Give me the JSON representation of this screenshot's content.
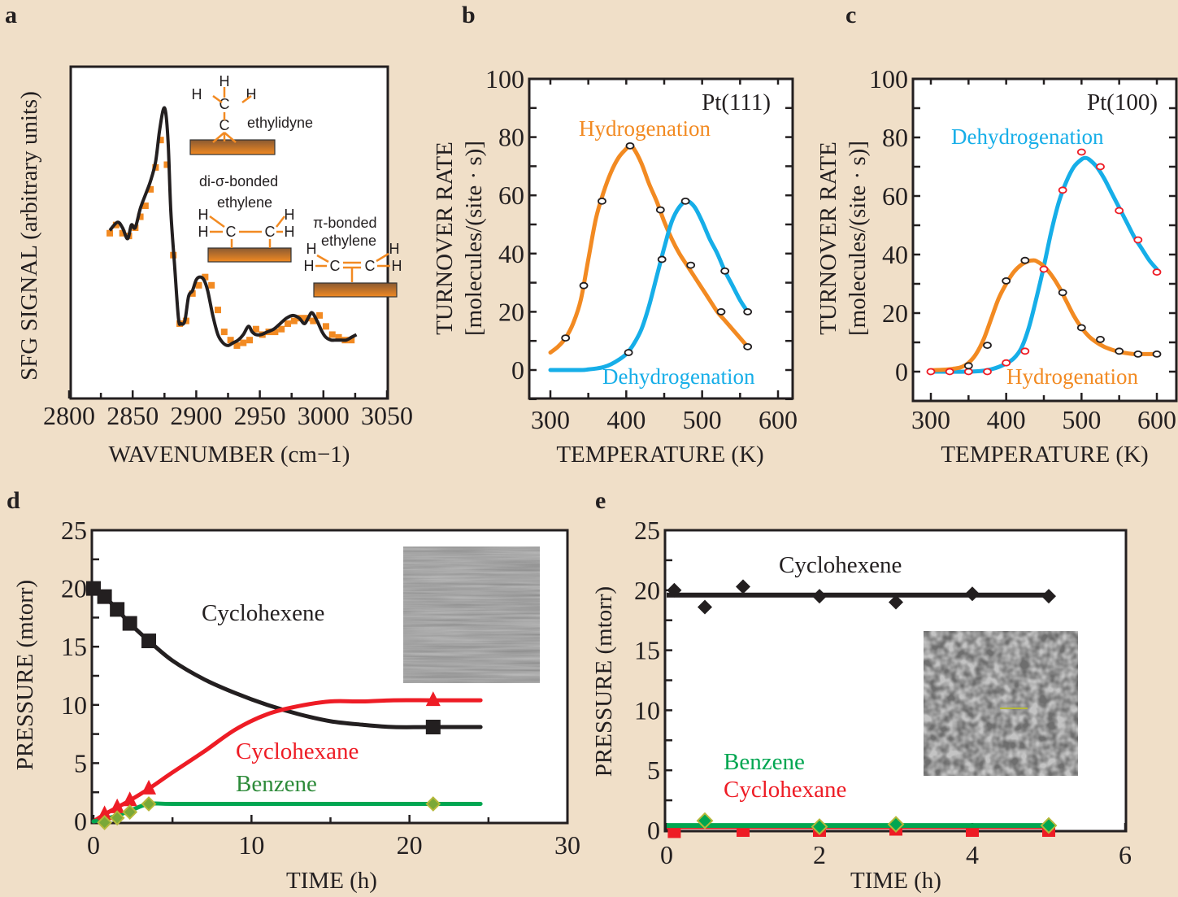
{
  "colors": {
    "background": "#f0dfc8",
    "orange": "#f28a22",
    "blue": "#16aee8",
    "black": "#231f20",
    "red": "#ee1c25",
    "green": "#00a651",
    "olive": "#b5b83a",
    "marker_red": "#ee1c25"
  },
  "chart_data": [
    {
      "panel": "a",
      "panel_label": "a",
      "type": "line",
      "title": "",
      "xlabel": "WAVENUMBER (cm−1)",
      "ylabel": "SFG SIGNAL (arbitrary units)",
      "xlim": [
        2800,
        3050
      ],
      "ylim": [
        0,
        100
      ],
      "xticks": [
        2800,
        2850,
        2900,
        2950,
        3000,
        3050
      ],
      "yticks": [],
      "grid": false,
      "series": [
        {
          "name": "fit",
          "style": "line",
          "color": "#231f20",
          "x": [
            2832,
            2838,
            2842,
            2846,
            2849,
            2852,
            2856,
            2860,
            2864,
            2868,
            2871,
            2874,
            2876,
            2878,
            2880,
            2883,
            2886,
            2888,
            2891,
            2894,
            2897,
            2900,
            2903,
            2906,
            2909,
            2913,
            2917,
            2921,
            2925,
            2929,
            2933,
            2937,
            2941,
            2944,
            2947,
            2951,
            2956,
            2961,
            2966,
            2971,
            2976,
            2981,
            2985,
            2988,
            2991,
            2995,
            2999,
            3002,
            3006,
            3010,
            3014,
            3018,
            3022,
            3026
          ],
          "y": [
            53,
            56,
            54,
            50,
            55,
            54,
            61,
            66,
            71,
            78,
            89,
            97,
            96,
            84,
            60,
            40,
            21,
            19,
            20,
            29,
            31,
            35,
            36,
            35,
            31,
            22,
            15,
            12,
            11,
            12,
            13,
            15,
            18,
            16,
            15,
            15,
            16,
            17,
            19,
            21,
            22,
            21,
            19,
            21,
            23,
            20,
            16,
            14,
            13,
            13,
            13,
            13,
            14,
            15
          ],
          "smooth": true
        },
        {
          "name": "data",
          "style": "square-markers",
          "color": "#f28a22",
          "x": [
            2832,
            2837,
            2842,
            2847,
            2852,
            2856,
            2860,
            2864,
            2868,
            2872,
            2877,
            2882,
            2887,
            2892,
            2897,
            2902,
            2907,
            2912,
            2917,
            2922,
            2927,
            2932,
            2937,
            2942,
            2947,
            2952,
            2957,
            2962,
            2967,
            2972,
            2977,
            2982,
            2987,
            2992,
            2997,
            3002,
            3007,
            3012,
            3017,
            3022
          ],
          "y": [
            52,
            55,
            52,
            51,
            54,
            58,
            62,
            68,
            76,
            86,
            77,
            44,
            19,
            20,
            30,
            33,
            36,
            33,
            24,
            16,
            13,
            11,
            12,
            13,
            17,
            15,
            16,
            16,
            17,
            19,
            20,
            21,
            21,
            20,
            22,
            18,
            15,
            14,
            13,
            13
          ]
        }
      ],
      "annotations": [
        {
          "text": "ethylidyne",
          "kind": "molecule",
          "molecule": "ethylidyne"
        },
        {
          "text": "di-σ-bonded",
          "kind": "label"
        },
        {
          "text": "ethylene",
          "kind": "label"
        },
        {
          "text": "π-bonded",
          "kind": "label"
        },
        {
          "text": "ethylene",
          "kind": "label"
        }
      ],
      "molecules": [
        {
          "name": "ethylidyne",
          "atoms": [
            "H",
            "H",
            "H",
            "C",
            "C"
          ]
        },
        {
          "name": "di-sigma-bonded-ethylene",
          "atoms": [
            "H",
            "H",
            "C",
            "C",
            "H",
            "H"
          ]
        },
        {
          "name": "pi-bonded-ethylene",
          "atoms": [
            "H",
            "H",
            "C",
            "C",
            "H",
            "H"
          ]
        }
      ]
    },
    {
      "panel": "b",
      "panel_label": "b",
      "type": "line",
      "title": "Pt(111)",
      "xlabel": "TEMPERATURE  (K)",
      "ylabel": "TURNOVER RATE",
      "ylabel2": "[molecules/(site · s)]",
      "xlim": [
        300,
        600
      ],
      "ylim": [
        -10,
        100
      ],
      "xticks": [
        300,
        400,
        500,
        600
      ],
      "yticks": [
        0,
        20,
        40,
        60,
        80,
        100
      ],
      "grid": false,
      "series": [
        {
          "name": "Hydrogenation",
          "color": "#f28a22",
          "curve_x": [
            300,
            310,
            320,
            330,
            340,
            350,
            360,
            370,
            380,
            390,
            400,
            405,
            410,
            420,
            430,
            440,
            450,
            460,
            470,
            480,
            490,
            500,
            510,
            520,
            530,
            540,
            550,
            560
          ],
          "curve_y": [
            6,
            8,
            11,
            16,
            24,
            38,
            52,
            61,
            68,
            73,
            76,
            77,
            76,
            71,
            64,
            58,
            51,
            45,
            40,
            36,
            32,
            28,
            24,
            20,
            17,
            14,
            11,
            8
          ],
          "points_x": [
            320,
            344,
            368,
            405,
            445,
            485,
            525,
            560
          ],
          "points_y": [
            11,
            29,
            58,
            77,
            55,
            36,
            20,
            8
          ]
        },
        {
          "name": "Dehydrogenation",
          "color": "#16aee8",
          "curve_x": [
            300,
            340,
            350,
            360,
            370,
            380,
            390,
            400,
            410,
            420,
            430,
            440,
            450,
            460,
            470,
            480,
            490,
            500,
            510,
            520,
            530,
            540,
            550,
            560
          ],
          "curve_y": [
            0,
            0,
            0.2,
            0.5,
            1,
            2,
            3.5,
            5.5,
            9,
            14,
            22,
            32,
            42,
            51,
            56,
            58,
            56,
            51,
            45,
            40,
            34,
            29,
            24,
            20
          ],
          "points_x": [
            403,
            447,
            478,
            530,
            560
          ],
          "points_y": [
            6,
            38,
            58,
            34,
            20
          ]
        }
      ],
      "labels": [
        {
          "text": "Pt(111)",
          "color": "#231f20"
        },
        {
          "text": "Hydrogenation",
          "color": "#f28a22"
        },
        {
          "text": "Dehydrogenation",
          "color": "#16aee8"
        }
      ]
    },
    {
      "panel": "c",
      "panel_label": "c",
      "type": "line",
      "title": "Pt(100)",
      "xlabel": "TEMPERATURE  (K)",
      "ylabel": "TURNOVER RATE",
      "ylabel2": "[molecules/(site · s)]",
      "xlim": [
        300,
        600
      ],
      "ylim": [
        -10,
        100
      ],
      "xticks": [
        300,
        400,
        500,
        600
      ],
      "yticks": [
        0,
        20,
        40,
        60,
        80,
        100
      ],
      "grid": false,
      "series": [
        {
          "name": "Dehydrogenation",
          "color": "#16aee8",
          "curve_x": [
            300,
            350,
            370,
            380,
            390,
            400,
            410,
            420,
            430,
            440,
            450,
            460,
            470,
            480,
            490,
            500,
            505,
            510,
            520,
            530,
            540,
            550,
            560,
            570,
            580,
            590,
            600
          ],
          "curve_y": [
            0,
            0,
            0.3,
            0.8,
            1.6,
            2.8,
            4.5,
            8,
            15,
            25,
            36,
            48,
            58,
            65,
            70,
            72.5,
            73,
            72.5,
            70,
            66,
            61,
            56,
            51,
            46,
            42,
            38,
            35
          ],
          "points_x": [
            300,
            325,
            350,
            375,
            400,
            425,
            450,
            475,
            500,
            525,
            550,
            575,
            600
          ],
          "points_y": [
            0,
            0,
            0,
            0,
            3,
            7,
            35,
            62,
            75,
            70,
            55,
            45,
            34
          ],
          "point_color": "#ee1c25"
        },
        {
          "name": "Hydrogenation",
          "color": "#f28a22",
          "curve_x": [
            300,
            320,
            330,
            340,
            350,
            360,
            370,
            380,
            390,
            400,
            410,
            420,
            430,
            435,
            440,
            450,
            460,
            470,
            480,
            490,
            500,
            510,
            520,
            530,
            540,
            550,
            560,
            570,
            580,
            590,
            600
          ],
          "curve_y": [
            0.5,
            0.7,
            1,
            1.5,
            3,
            6,
            11,
            18,
            25,
            30,
            34,
            36.5,
            37.8,
            38,
            37.8,
            36,
            33,
            29,
            24,
            19,
            15,
            12,
            10,
            8.5,
            7.5,
            6.8,
            6.3,
            6,
            6,
            6,
            6
          ],
          "points_x": [
            350,
            375,
            400,
            425,
            475,
            500,
            525,
            550,
            575,
            600
          ],
          "points_y": [
            2,
            9,
            31,
            38,
            27,
            15,
            11,
            7,
            6,
            6
          ],
          "point_color": "#231f20"
        }
      ],
      "labels": [
        {
          "text": "Pt(100)",
          "color": "#231f20"
        },
        {
          "text": "Dehydrogenation",
          "color": "#16aee8"
        },
        {
          "text": "Hydrogenation",
          "color": "#f28a22"
        }
      ]
    },
    {
      "panel": "d",
      "panel_label": "d",
      "type": "line",
      "title": "",
      "xlabel": "TIME (h)",
      "ylabel": "PRESSURE (mtorr)",
      "xlim": [
        0,
        30
      ],
      "ylim": [
        0,
        25
      ],
      "xticks": [
        0,
        10,
        20,
        30
      ],
      "yticks": [
        0,
        5,
        10,
        15,
        20,
        25
      ],
      "grid": false,
      "series": [
        {
          "name": "Cyclohexene",
          "color": "#231f20",
          "marker": "square",
          "curve_x": [
            0,
            0.7,
            1.5,
            2.3,
            3.5,
            5,
            7,
            9,
            11,
            13,
            15,
            17,
            19,
            21.5,
            24.5
          ],
          "curve_y": [
            20,
            19.3,
            18.2,
            17,
            15.5,
            13.8,
            12.2,
            11,
            10,
            9.2,
            8.6,
            8.3,
            8.1,
            8.1,
            8.1
          ],
          "points_x": [
            0,
            0.7,
            1.5,
            2.3,
            3.5,
            21.5
          ],
          "points_y": [
            20,
            19.3,
            18.2,
            17,
            15.5,
            8.1
          ]
        },
        {
          "name": "Cyclohexane",
          "color": "#ee1c25",
          "marker": "triangle",
          "curve_x": [
            0,
            0.7,
            1.5,
            2.3,
            3.5,
            5,
            7,
            9,
            11,
            13,
            15,
            17,
            19,
            21.5,
            24.5
          ],
          "curve_y": [
            0,
            0.6,
            1.2,
            1.8,
            2.8,
            4.2,
            6,
            7.9,
            9.2,
            9.9,
            10.3,
            10.3,
            10.4,
            10.4,
            10.4
          ],
          "points_x": [
            0.7,
            1.5,
            2.3,
            3.5,
            21.5
          ],
          "points_y": [
            0.6,
            1.2,
            1.8,
            2.8,
            10.4
          ]
        },
        {
          "name": "Benzene",
          "color": "#00a651",
          "marker": "diamond",
          "curve_x": [
            0,
            0.7,
            1.5,
            2.3,
            3.5,
            5,
            10,
            15,
            20,
            21.5,
            24.5
          ],
          "curve_y": [
            0,
            0.2,
            0.5,
            0.9,
            1.5,
            1.5,
            1.5,
            1.5,
            1.5,
            1.5,
            1.5
          ],
          "points_x": [
            0.7,
            1.5,
            2.3,
            3.5,
            21.5
          ],
          "points_y": [
            -0.1,
            0.3,
            0.8,
            1.5,
            1.5
          ]
        }
      ],
      "labels": [
        {
          "text": "Cyclohexene",
          "color": "#231f20"
        },
        {
          "text": "Cyclohexane",
          "color": "#ee1c25"
        },
        {
          "text": "Benzene",
          "color": "#2e8b3a"
        }
      ],
      "inset": {
        "kind": "stm-image",
        "texture": "streaked-gray"
      }
    },
    {
      "panel": "e",
      "panel_label": "e",
      "type": "line",
      "title": "",
      "xlabel": "TIME (h)",
      "ylabel": "PRESSURE (mtorr)",
      "xlim": [
        0,
        6
      ],
      "ylim": [
        0,
        25
      ],
      "xticks": [
        0,
        2,
        4,
        6
      ],
      "yticks": [
        0,
        5,
        10,
        15,
        20,
        25
      ],
      "grid": false,
      "series": [
        {
          "name": "Cyclohexene",
          "color": "#231f20",
          "marker": "diamond",
          "curve_x": [
            0,
            5
          ],
          "curve_y": [
            19.6,
            19.6
          ],
          "points_x": [
            0.1,
            0.5,
            1,
            2,
            3,
            4,
            5
          ],
          "points_y": [
            20,
            18.6,
            20.3,
            19.5,
            19,
            19.7,
            19.5
          ]
        },
        {
          "name": "Cyclohexane",
          "color": "#ee1c25",
          "marker": "square",
          "curve_x": [
            0,
            5
          ],
          "curve_y": [
            0.3,
            0.3
          ],
          "points_x": [
            0.1,
            1,
            2,
            3,
            4,
            5
          ],
          "points_y": [
            -0.1,
            0,
            0,
            0.1,
            0,
            0
          ]
        },
        {
          "name": "Benzene",
          "color": "#00a651",
          "marker": "diamond",
          "curve_x": [
            0,
            5
          ],
          "curve_y": [
            0.4,
            0.4
          ],
          "points_x": [
            0.5,
            2,
            3,
            5
          ],
          "points_y": [
            0.8,
            0.3,
            0.5,
            0.4
          ]
        }
      ],
      "labels": [
        {
          "text": "Cyclohexene",
          "color": "#231f20"
        },
        {
          "text": "Benzene",
          "color": "#00a651"
        },
        {
          "text": "Cyclohexane",
          "color": "#ee1c25"
        }
      ],
      "inset": {
        "kind": "stm-image",
        "texture": "mottled-gray"
      }
    }
  ]
}
